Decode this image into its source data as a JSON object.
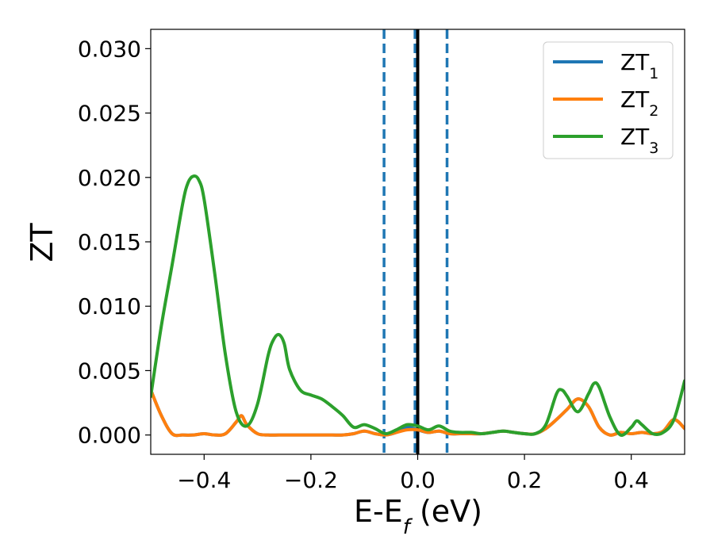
{
  "chart_data": {
    "type": "line",
    "xlabel": {
      "base": "E-E",
      "sub": "f",
      "rest": " (eV)"
    },
    "ylabel": "ZT",
    "xlim": [
      -0.5,
      0.5
    ],
    "ylim": [
      -0.0015,
      0.0315
    ],
    "xticks": [
      -0.4,
      -0.2,
      0.0,
      0.2,
      0.4
    ],
    "xtick_labels": [
      "−0.4",
      "−0.2",
      "0.0",
      "0.2",
      "0.4"
    ],
    "yticks": [
      0.0,
      0.005,
      0.01,
      0.015,
      0.02,
      0.025,
      0.03
    ],
    "ytick_labels": [
      "0.000",
      "0.005",
      "0.010",
      "0.015",
      "0.020",
      "0.025",
      "0.030"
    ],
    "grid": false,
    "legend_position": "top-right",
    "vlines": [
      {
        "x": -0.063,
        "style": "dashed",
        "color": "#1f77b4"
      },
      {
        "x": -0.005,
        "style": "dashed",
        "color": "#1f77b4"
      },
      {
        "x": 0.055,
        "style": "dashed",
        "color": "#1f77b4"
      },
      {
        "x": 0.0,
        "style": "solid",
        "color": "#000000"
      }
    ],
    "series": [
      {
        "name": "ZT1",
        "label_base": "ZT",
        "label_sub": "1",
        "color": "#1f77b4",
        "x": [
          -0.5,
          -0.48,
          -0.46,
          -0.44,
          -0.42,
          -0.4,
          -0.38,
          -0.36,
          -0.34,
          -0.33,
          -0.32,
          -0.3,
          -0.28,
          -0.26,
          -0.24,
          -0.22,
          -0.2,
          -0.18,
          -0.16,
          -0.14,
          -0.12,
          -0.1,
          -0.08,
          -0.06,
          -0.04,
          -0.02,
          0.0,
          0.02,
          0.04,
          0.06,
          0.08,
          0.1,
          0.12,
          0.14,
          0.16,
          0.18,
          0.2,
          0.22,
          0.24,
          0.26,
          0.28,
          0.3,
          0.32,
          0.34,
          0.36,
          0.38,
          0.4,
          0.42,
          0.44,
          0.46,
          0.48,
          0.5
        ],
        "y": [
          0.0035,
          0.0015,
          0.0001,
          0.0,
          0.0,
          0.0001,
          0.0,
          0.0001,
          0.001,
          0.0015,
          0.0008,
          0.0001,
          0.0,
          0.0,
          0.0,
          0.0,
          0.0,
          0.0,
          0.0,
          0.0,
          0.0001,
          0.0003,
          0.0001,
          0.0,
          0.0002,
          0.0006,
          0.0004,
          0.0002,
          0.0003,
          0.0001,
          0.0001,
          0.0001,
          0.0001,
          0.0002,
          0.0003,
          0.0002,
          0.0001,
          0.0001,
          0.0005,
          0.0012,
          0.002,
          0.0028,
          0.0022,
          0.0006,
          0.0,
          0.0002,
          0.0001,
          0.0002,
          0.0001,
          0.0003,
          0.0012,
          0.0005
        ]
      },
      {
        "name": "ZT2",
        "label_base": "ZT",
        "label_sub": "2",
        "color": "#ff7f0e",
        "x": [
          -0.5,
          -0.48,
          -0.46,
          -0.44,
          -0.42,
          -0.4,
          -0.38,
          -0.36,
          -0.34,
          -0.33,
          -0.32,
          -0.3,
          -0.28,
          -0.26,
          -0.24,
          -0.22,
          -0.2,
          -0.18,
          -0.16,
          -0.14,
          -0.12,
          -0.1,
          -0.08,
          -0.06,
          -0.04,
          -0.02,
          0.0,
          0.02,
          0.04,
          0.06,
          0.08,
          0.1,
          0.12,
          0.14,
          0.16,
          0.18,
          0.2,
          0.22,
          0.24,
          0.26,
          0.28,
          0.3,
          0.32,
          0.34,
          0.36,
          0.38,
          0.4,
          0.42,
          0.44,
          0.46,
          0.48,
          0.5
        ],
        "y": [
          0.0035,
          0.0015,
          0.0001,
          0.0,
          0.0,
          0.0001,
          0.0,
          0.0001,
          0.001,
          0.0015,
          0.0008,
          0.0001,
          0.0,
          0.0,
          0.0,
          0.0,
          0.0,
          0.0,
          0.0,
          0.0,
          0.0001,
          0.0003,
          0.0001,
          0.0,
          0.0002,
          0.0004,
          0.0004,
          0.0002,
          0.0003,
          0.0001,
          0.0001,
          0.0001,
          0.0001,
          0.0002,
          0.0003,
          0.0002,
          0.0001,
          0.0001,
          0.0005,
          0.0012,
          0.002,
          0.0028,
          0.0022,
          0.0006,
          0.0,
          0.0002,
          0.0001,
          0.0002,
          0.0001,
          0.0003,
          0.0012,
          0.0005
        ]
      },
      {
        "name": "ZT3",
        "label_base": "ZT",
        "label_sub": "3",
        "color": "#2ca02c",
        "x": [
          -0.5,
          -0.48,
          -0.46,
          -0.44,
          -0.43,
          -0.42,
          -0.41,
          -0.4,
          -0.38,
          -0.36,
          -0.34,
          -0.32,
          -0.3,
          -0.28,
          -0.27,
          -0.26,
          -0.25,
          -0.24,
          -0.22,
          -0.2,
          -0.18,
          -0.16,
          -0.14,
          -0.12,
          -0.1,
          -0.08,
          -0.06,
          -0.04,
          -0.02,
          0.0,
          0.02,
          0.04,
          0.06,
          0.08,
          0.1,
          0.12,
          0.14,
          0.16,
          0.18,
          0.2,
          0.22,
          0.24,
          0.26,
          0.27,
          0.28,
          0.3,
          0.32,
          0.33,
          0.34,
          0.36,
          0.38,
          0.4,
          0.41,
          0.42,
          0.44,
          0.46,
          0.48,
          0.5
        ],
        "y": [
          0.003,
          0.0085,
          0.0132,
          0.018,
          0.0196,
          0.0201,
          0.0198,
          0.0183,
          0.0125,
          0.0062,
          0.0018,
          0.0007,
          0.0024,
          0.0062,
          0.0074,
          0.0078,
          0.0071,
          0.0051,
          0.0035,
          0.0031,
          0.0028,
          0.0022,
          0.0015,
          0.0006,
          0.0008,
          0.0005,
          0.0001,
          0.0004,
          0.0008,
          0.0007,
          0.0004,
          0.0007,
          0.0003,
          0.0002,
          0.0002,
          0.0001,
          0.0002,
          0.0003,
          0.0002,
          0.0001,
          0.0001,
          0.0008,
          0.0032,
          0.0035,
          0.003,
          0.0018,
          0.0032,
          0.004,
          0.0037,
          0.0014,
          0.0,
          0.0006,
          0.0011,
          0.0008,
          0.0001,
          0.0002,
          0.0012,
          0.0042
        ]
      }
    ]
  }
}
